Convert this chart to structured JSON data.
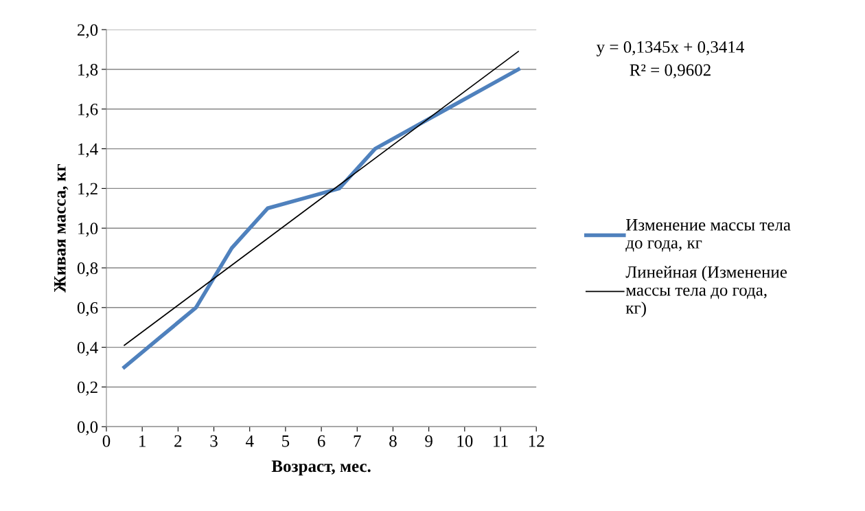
{
  "chart_data": {
    "type": "line",
    "xlabel": "Возраст, мес.",
    "ylabel": "Живая масса, кг",
    "x": [
      0.5,
      1.5,
      2.5,
      3.5,
      4.5,
      5.5,
      6.5,
      7.5,
      8.5,
      9.5,
      10.5,
      11.5
    ],
    "series": [
      {
        "name": "Изменение массы тела до года, кг",
        "color": "#4f81bd",
        "values": [
          0.3,
          0.45,
          0.6,
          0.9,
          1.1,
          1.15,
          1.2,
          1.4,
          1.5,
          1.6,
          1.7,
          1.8
        ]
      },
      {
        "name": "Линейная (Изменение массы тела до года, кг)",
        "color": "#000000",
        "type": "line",
        "x": [
          0.5,
          11.5
        ],
        "values": [
          0.41,
          1.89
        ]
      }
    ],
    "annotations": [
      "y = 0,1345x + 0,3414",
      "R² = 0,9602"
    ],
    "xlim": [
      0,
      12
    ],
    "xticks": [
      0,
      1,
      2,
      3,
      4,
      5,
      6,
      7,
      8,
      9,
      10,
      11,
      12
    ],
    "ylim": [
      0,
      2
    ],
    "yticks": [
      {
        "value": 0,
        "label": "0,0"
      },
      {
        "value": 0.2,
        "label": "0,2"
      },
      {
        "value": 0.4,
        "label": "0,4"
      },
      {
        "value": 0.6,
        "label": "0,6"
      },
      {
        "value": 0.8,
        "label": "0,8"
      },
      {
        "value": 1.0,
        "label": "1,0"
      },
      {
        "value": 1.2,
        "label": "1,2"
      },
      {
        "value": 1.4,
        "label": "1,4"
      },
      {
        "value": 1.6,
        "label": "1,6"
      },
      {
        "value": 1.8,
        "label": "1,8"
      },
      {
        "value": 2.0,
        "label": "2,0"
      }
    ],
    "grid": "y",
    "legend": "right",
    "marker": "none",
    "line_style": "solid"
  }
}
